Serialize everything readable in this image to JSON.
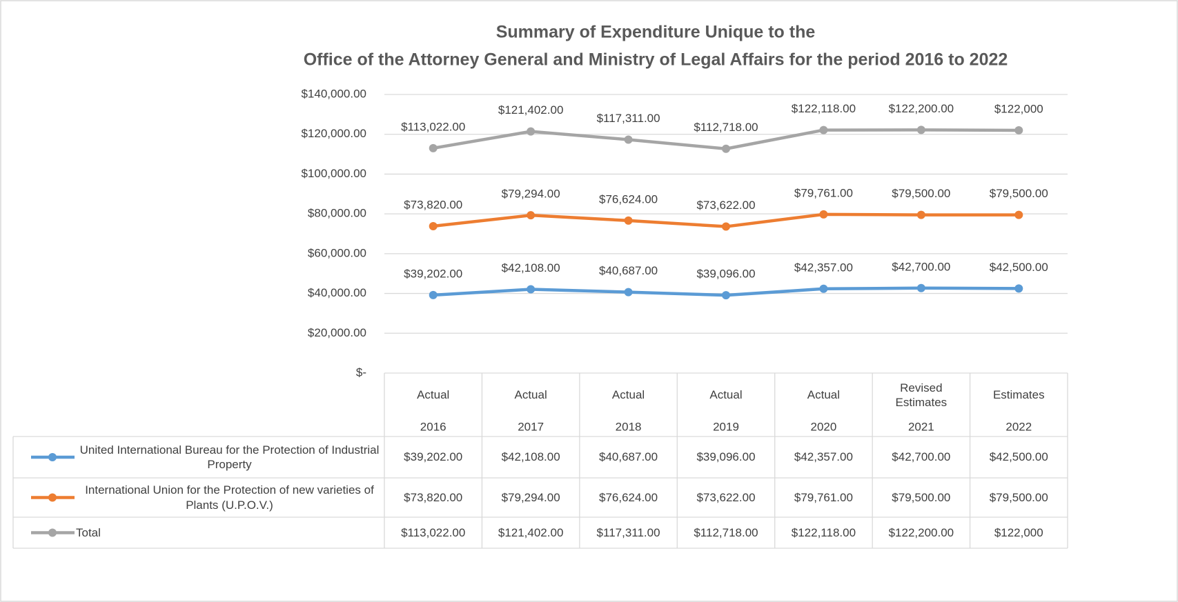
{
  "chart_data": {
    "type": "line",
    "title": [
      "Summary of Expenditure Unique to the",
      "Office of the Attorney General and Ministry of Legal Affairs for the period 2016 to 2022"
    ],
    "categories": [
      [
        "Actual",
        "2016"
      ],
      [
        "Actual",
        "2017"
      ],
      [
        "Actual",
        "2018"
      ],
      [
        "Actual",
        "2019"
      ],
      [
        "Actual",
        "2020"
      ],
      [
        "Revised Estimates",
        "2021"
      ],
      [
        "Estimates",
        "2022"
      ]
    ],
    "series": [
      {
        "name": "United International Bureau for the Protection of Industrial Property",
        "color": "#5b9bd5",
        "values": [
          39202,
          42108,
          40687,
          39096,
          42357,
          42700,
          42500
        ],
        "value_labels": [
          "$39,202.00",
          "$42,108.00",
          "$40,687.00",
          "$39,096.00",
          "$42,357.00",
          "$42,700.00",
          "$42,500.00"
        ]
      },
      {
        "name": "International Union for the Protection of new varieties of Plants (U.P.O.V.)",
        "color": "#ed7d31",
        "values": [
          73820,
          79294,
          76624,
          73622,
          79761,
          79500,
          79500
        ],
        "value_labels": [
          "$73,820.00",
          "$79,294.00",
          "$76,624.00",
          "$73,622.00",
          "$79,761.00",
          "$79,500.00",
          "$79,500.00"
        ]
      },
      {
        "name": "Total",
        "color": "#a5a5a5",
        "values": [
          113022,
          121402,
          117311,
          112718,
          122118,
          122200,
          122000
        ],
        "value_labels": [
          "$113,022.00",
          "$121,402.00",
          "$117,311.00",
          "$112,718.00",
          "$122,118.00",
          "$122,200.00",
          "$122,000"
        ]
      }
    ],
    "ylim": [
      0,
      140000
    ],
    "yticks": [
      {
        "value": 0,
        "label": "$-"
      },
      {
        "value": 20000,
        "label": "$20,000.00"
      },
      {
        "value": 40000,
        "label": "$40,000.00"
      },
      {
        "value": 60000,
        "label": "$60,000.00"
      },
      {
        "value": 80000,
        "label": "$80,000.00"
      },
      {
        "value": 100000,
        "label": "$100,000.00"
      },
      {
        "value": 120000,
        "label": "$120,000.00"
      },
      {
        "value": 140000,
        "label": "$140,000.00"
      }
    ],
    "grid": true,
    "data_table": true
  }
}
